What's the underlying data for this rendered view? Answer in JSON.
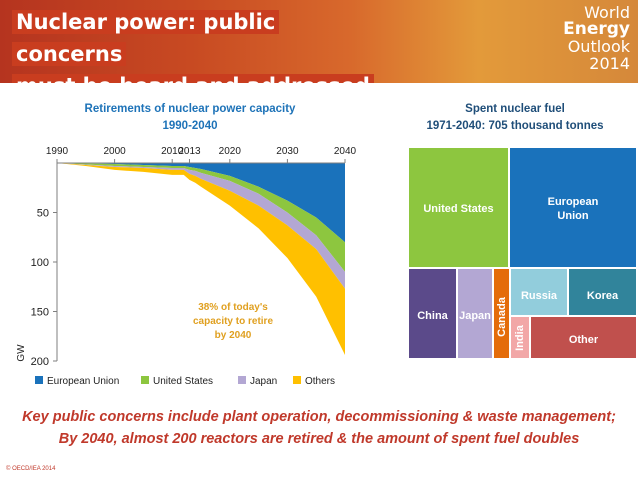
{
  "header": {
    "title_line1": "Nuclear power: public concerns",
    "title_line2": "must be heard and addressed",
    "brand_line1": "World",
    "brand_line2": "Energy",
    "brand_line3": "Outlook",
    "brand_line4": "2014"
  },
  "chart_data": [
    {
      "type": "area",
      "title": "Retirements of nuclear power capacity",
      "subtitle": "1990-2040",
      "ylabel": "GW",
      "xlabel": "",
      "x": [
        1990,
        1995,
        2000,
        2005,
        2010,
        2012,
        2013,
        2014,
        2015,
        2020,
        2025,
        2030,
        2035,
        2040
      ],
      "x_ticks": [
        "1990",
        "2000",
        "2010",
        "2013",
        "2020",
        "2030",
        "2040"
      ],
      "x_tick_values": [
        1990,
        2000,
        2010,
        2013,
        2020,
        2030,
        2040
      ],
      "ylim": [
        0,
        200
      ],
      "y_ticks": [
        50,
        100,
        150,
        200
      ],
      "y_inverted": true,
      "stacked": true,
      "series": [
        {
          "name": "European Union",
          "color": "#1a72bb",
          "values": [
            0,
            0.5,
            1,
            2,
            3,
            3,
            4,
            5,
            6,
            13,
            24,
            38,
            55,
            80
          ]
        },
        {
          "name": "United States",
          "color": "#8dc63f",
          "values": [
            0,
            1,
            2,
            2,
            2,
            2,
            3,
            3,
            4,
            5,
            7,
            12,
            18,
            30
          ]
        },
        {
          "name": "Japan",
          "color": "#b3a7d3",
          "values": [
            0,
            0.5,
            1,
            1,
            2,
            2,
            4,
            5,
            6,
            10,
            12,
            13,
            14,
            17
          ]
        },
        {
          "name": "Others",
          "color": "#ffc000",
          "values": [
            0,
            1,
            3,
            4,
            5,
            5,
            6,
            7,
            8,
            15,
            23,
            33,
            48,
            67
          ]
        }
      ],
      "annotation": "38% of today's capacity to retire by 2040",
      "legend": "bottom"
    },
    {
      "type": "treemap",
      "title": "Spent nuclear fuel",
      "subtitle": "1971-2040: 705 thousand tonnes",
      "cells": [
        {
          "label": "United States",
          "color": "#8dc63f"
        },
        {
          "label": "European Union",
          "color": "#1a72bb"
        },
        {
          "label": "China",
          "color": "#5b4a8a"
        },
        {
          "label": "Japan",
          "color": "#b3a7d3"
        },
        {
          "label": "Canada",
          "color": "#e46c0a"
        },
        {
          "label": "India",
          "color": "#f2a7a7"
        },
        {
          "label": "Russia",
          "color": "#92cddc"
        },
        {
          "label": "Korea",
          "color": "#31849b"
        },
        {
          "label": "Other",
          "color": "#c0504d"
        }
      ]
    }
  ],
  "footer": {
    "line1": "Key public concerns include plant operation, decommissioning & waste management;",
    "line2": "By 2040, almost 200 reactors are retired & the amount of spent fuel doubles",
    "copyright": "© OECD/IEA 2014"
  }
}
